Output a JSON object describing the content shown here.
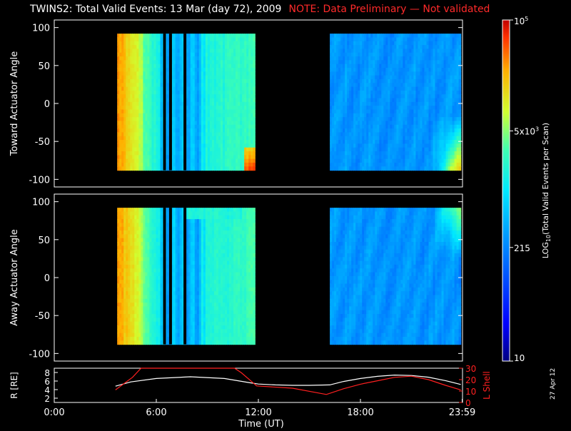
{
  "header": {
    "title": "TWINS2: Total Valid Events: 13 Mar (day  72), 2009",
    "note": "NOTE: Data Preliminary — Not validated"
  },
  "stamp": "27 Apr 12",
  "colors": {
    "background": "#000000",
    "axis": "#ffffff",
    "note": "#ff2020",
    "r_line": "#ffffff",
    "lshell_line": "#ff2020"
  },
  "chart_data": [
    {
      "type": "heatmap",
      "panel": "toward",
      "ylabel": "Toward Actuator Angle",
      "x_unit": "hours UT",
      "xlim": [
        0,
        24
      ],
      "ylim": [
        -110,
        110
      ],
      "yticks": [
        100,
        50,
        0,
        -50,
        -100
      ],
      "data_blocks": [
        [
          3.7,
          11.8
        ],
        [
          16.2,
          23.9
        ]
      ],
      "y_extent": [
        -88,
        92
      ]
    },
    {
      "type": "heatmap",
      "panel": "away",
      "ylabel": "Away Actuator Angle",
      "x_unit": "hours UT",
      "xlim": [
        0,
        24
      ],
      "ylim": [
        -110,
        110
      ],
      "yticks": [
        100,
        50,
        0,
        -50,
        -100
      ],
      "data_blocks": [
        [
          3.7,
          11.8
        ],
        [
          16.2,
          23.9
        ]
      ],
      "y_extent": [
        -88,
        92
      ]
    },
    {
      "type": "line",
      "panel": "orbit",
      "xlabel": "Time (UT)",
      "xlim": [
        0,
        24
      ],
      "xticks": [
        "0:00",
        "6:00",
        "12:00",
        "18:00",
        "23:59"
      ],
      "ylabel_left": "R [RE]",
      "yticks_left": [
        2,
        4,
        6,
        8
      ],
      "ylim_left": [
        1,
        9
      ],
      "ylabel_right": "L Shell",
      "yticks_right": [
        0,
        10,
        20,
        30
      ],
      "ylim_right": [
        0,
        30
      ],
      "series": [
        {
          "name": "R [RE]",
          "axis": "left",
          "x": [
            3.6,
            4.5,
            6,
            8,
            10,
            11.5,
            12,
            13,
            14,
            15,
            16.2,
            17,
            18,
            19,
            20,
            21,
            22,
            23,
            23.9
          ],
          "values": [
            4.8,
            5.8,
            6.6,
            7.0,
            6.6,
            5.6,
            5.3,
            5.1,
            5.0,
            5.0,
            5.1,
            5.9,
            6.6,
            7.1,
            7.4,
            7.3,
            6.9,
            6.1,
            5.2
          ]
        },
        {
          "name": "L Shell",
          "axis": "right",
          "x": [
            3.6,
            4.6,
            5.1,
            10.6,
            11,
            11.9,
            14,
            16,
            17,
            18,
            19,
            20,
            21,
            22,
            23,
            23.9
          ],
          "values": [
            11,
            22,
            30,
            30,
            26,
            14.5,
            12.5,
            7,
            12,
            16,
            19,
            22,
            23,
            20,
            15,
            11
          ]
        }
      ]
    },
    {
      "type": "colorbar",
      "label_pre": "LOG",
      "label_sub": "10",
      "label_post": "(Total Valid Events per Scan)",
      "ticks": [
        {
          "value": 10,
          "label": "10"
        },
        {
          "value": 215,
          "label": "215"
        },
        {
          "value": 5000,
          "label": "5x10",
          "exp": "3"
        },
        {
          "value": 100000,
          "label": "10",
          "exp": "5"
        }
      ],
      "range": [
        10,
        100000
      ],
      "scale": "log"
    }
  ]
}
